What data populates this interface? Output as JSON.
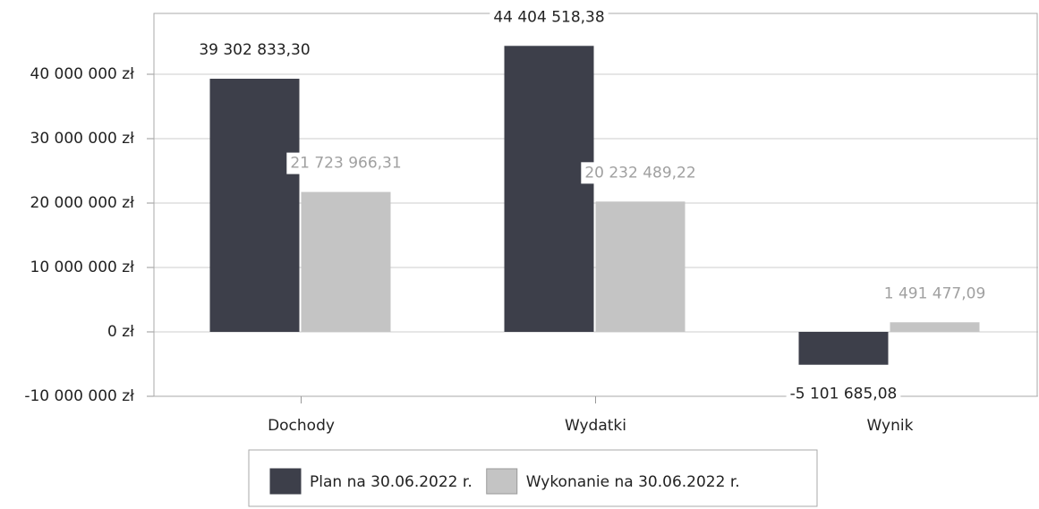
{
  "chart_data": {
    "type": "bar",
    "categories": [
      "Dochody",
      "Wydatki",
      "Wynik"
    ],
    "series": [
      {
        "name": "Plan na 30.06.2022 r.",
        "color": "#3d3f4a",
        "label_color": "#222222",
        "values": [
          39302833.3,
          44404518.38,
          -5101685.08
        ],
        "value_labels": [
          "39 302 833,30",
          "44 404 518,38",
          "-5 101 685,08"
        ]
      },
      {
        "name": "Wykonanie na 30.06.2022 r.",
        "color": "#c4c4c4",
        "label_color": "#a0a0a0",
        "values": [
          21723966.31,
          20232489.22,
          1491477.09
        ],
        "value_labels": [
          "21 723 966,31",
          "20 232 489,22",
          "1 491 477,09"
        ]
      }
    ],
    "ylim": [
      -10000000,
      50000000
    ],
    "yticks": [
      {
        "value": -10000000,
        "label": "-10 000 000 zł"
      },
      {
        "value": 0,
        "label": "0 zł"
      },
      {
        "value": 10000000,
        "label": "10 000 000 zł"
      },
      {
        "value": 20000000,
        "label": "20 000 000 zł"
      },
      {
        "value": 30000000,
        "label": "30 000 000 zł"
      },
      {
        "value": 40000000,
        "label": "40 000 000 zł"
      }
    ],
    "grid": true,
    "legend": "bottom"
  }
}
